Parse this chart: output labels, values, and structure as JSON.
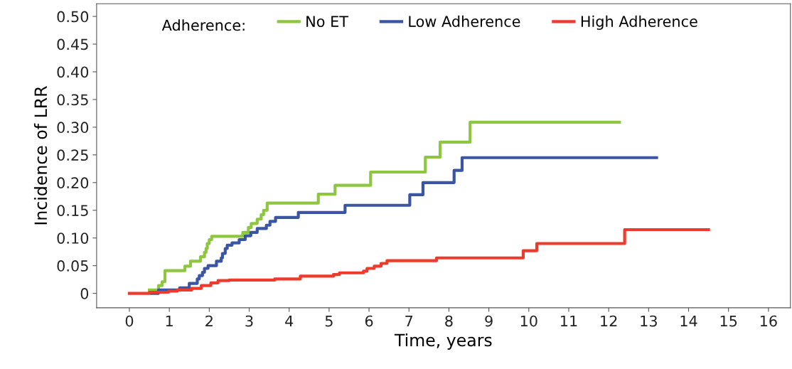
{
  "chart_data": {
    "type": "step",
    "xlabel": "Time, years",
    "ylabel": "Incidence of LRR",
    "legend_title": "Adherence:",
    "xlim": [
      -0.82,
      16.55
    ],
    "ylim": [
      -0.026,
      0.523
    ],
    "xticks": [
      0,
      1,
      2,
      3,
      4,
      5,
      6,
      7,
      8,
      9,
      10,
      11,
      12,
      13,
      14,
      15,
      16
    ],
    "yticks": [
      {
        "value": 0,
        "label": "0"
      },
      {
        "value": 0.05,
        "label": "0.05"
      },
      {
        "value": 0.1,
        "label": "0.10"
      },
      {
        "value": 0.15,
        "label": "0.15"
      },
      {
        "value": 0.2,
        "label": "0.20"
      },
      {
        "value": 0.25,
        "label": "0.25"
      },
      {
        "value": 0.3,
        "label": "0.30"
      },
      {
        "value": 0.35,
        "label": "0.35"
      },
      {
        "value": 0.4,
        "label": "0.40"
      },
      {
        "value": 0.45,
        "label": "0.45"
      },
      {
        "value": 0.5,
        "label": "0.50"
      }
    ],
    "grid": false,
    "legend": "top",
    "marker": "none",
    "line_style": "solid",
    "series": [
      {
        "name": "No ET",
        "color": "#8dc63f",
        "x": [
          0.5,
          0.73,
          0.82,
          0.89,
          1.39,
          1.53,
          1.78,
          1.88,
          1.92,
          1.95,
          2.0,
          2.06,
          2.84,
          2.98,
          3.05,
          3.2,
          3.3,
          3.36,
          3.45,
          4.73,
          5.15,
          6.04,
          7.41,
          7.78,
          8.53,
          12.27
        ],
        "values": [
          0.006,
          0.014,
          0.021,
          0.041,
          0.049,
          0.058,
          0.066,
          0.074,
          0.081,
          0.09,
          0.097,
          0.103,
          0.11,
          0.119,
          0.126,
          0.134,
          0.142,
          0.15,
          0.163,
          0.179,
          0.195,
          0.219,
          0.246,
          0.273,
          0.309,
          0.309
        ]
      },
      {
        "name": "Low Adherence",
        "color": "#3a55a4",
        "x": [
          0.55,
          0.73,
          1.26,
          1.5,
          1.7,
          1.75,
          1.83,
          1.88,
          1.97,
          2.18,
          2.3,
          2.33,
          2.4,
          2.45,
          2.57,
          2.75,
          2.9,
          3.04,
          3.2,
          3.43,
          3.52,
          3.66,
          4.23,
          5.4,
          7.02,
          7.35,
          8.13,
          8.33,
          13.2
        ],
        "values": [
          0,
          0.006,
          0.01,
          0.018,
          0.026,
          0.032,
          0.038,
          0.045,
          0.05,
          0.058,
          0.064,
          0.072,
          0.081,
          0.087,
          0.091,
          0.097,
          0.104,
          0.11,
          0.117,
          0.123,
          0.13,
          0.137,
          0.146,
          0.159,
          0.178,
          0.2,
          0.222,
          0.245,
          0.245
        ]
      },
      {
        "name": "High Adherence",
        "color": "#ee3a2b",
        "x": [
          0,
          0.5,
          0.98,
          1.2,
          1.56,
          1.8,
          2.04,
          2.22,
          2.5,
          3.64,
          4.28,
          5.11,
          5.26,
          5.86,
          5.95,
          6.13,
          6.3,
          6.45,
          7.69,
          9.86,
          10.2,
          12.4,
          14.5
        ],
        "values": [
          0,
          0.002,
          0.004,
          0.006,
          0.009,
          0.014,
          0.019,
          0.023,
          0.024,
          0.026,
          0.031,
          0.034,
          0.037,
          0.04,
          0.045,
          0.049,
          0.054,
          0.059,
          0.064,
          0.077,
          0.09,
          0.115,
          0.115
        ]
      }
    ]
  }
}
